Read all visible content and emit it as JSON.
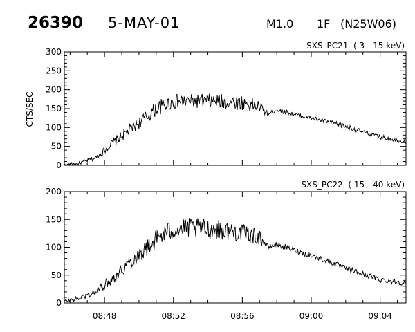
{
  "header": {
    "event_number": "26390",
    "date": "5-MAY-01",
    "goes_class": "M1.0",
    "optical_class": "1F",
    "location": "(N25W06)"
  },
  "chart_data": [
    {
      "type": "line",
      "title": "SXS_PC21  ( 3 - 15 keV)",
      "ylabel": "CTS/SEC",
      "xlabel": "",
      "xlim": [
        "08:45:40",
        "09:05:30"
      ],
      "ylim": [
        0,
        300
      ],
      "yticks": [
        0,
        50,
        100,
        150,
        200,
        250,
        300
      ],
      "xticks": [
        "08:48",
        "08:52",
        "08:56",
        "09:00",
        "09:04"
      ],
      "xtick_labels_shown": false,
      "grid": false,
      "series": [
        {
          "x": [
            "08:45:40",
            "08:46:30",
            "08:47:30",
            "08:48:30",
            "08:49:30",
            "08:50:30",
            "08:51:00",
            "08:51:30",
            "08:52:00",
            "08:53:00",
            "08:54:00",
            "08:55:00",
            "08:56:00",
            "08:57:00",
            "08:57:30",
            "08:58:00",
            "08:59:00",
            "09:00:00",
            "09:01:00",
            "09:02:00",
            "09:03:00",
            "09:04:00",
            "09:05:30"
          ],
          "y": [
            2,
            5,
            20,
            60,
            95,
            130,
            150,
            160,
            168,
            170,
            170,
            168,
            166,
            155,
            135,
            147,
            135,
            125,
            115,
            103,
            88,
            75,
            63
          ],
          "noise": [
            3,
            4,
            6,
            12,
            15,
            18,
            20,
            20,
            20,
            18,
            20,
            20,
            20,
            16,
            5,
            6,
            6,
            6,
            6,
            6,
            6,
            6,
            6
          ]
        }
      ]
    },
    {
      "type": "line",
      "title": "SXS_PC22  ( 15 - 40 keV)",
      "ylabel": "",
      "xlabel": "",
      "xlim": [
        "08:45:40",
        "09:05:30"
      ],
      "ylim": [
        0,
        200
      ],
      "yticks": [
        0,
        50,
        100,
        150,
        200
      ],
      "xticks": [
        "08:48",
        "08:52",
        "08:56",
        "09:00",
        "09:04"
      ],
      "xtick_labels_shown": true,
      "grid": false,
      "series": [
        {
          "x": [
            "08:45:40",
            "08:46:30",
            "08:47:30",
            "08:48:30",
            "08:49:30",
            "08:50:30",
            "08:51:00",
            "08:51:30",
            "08:52:00",
            "08:53:00",
            "08:54:00",
            "08:55:00",
            "08:56:00",
            "08:57:00",
            "08:57:30",
            "08:58:00",
            "08:59:00",
            "09:00:00",
            "09:01:00",
            "09:02:00",
            "09:03:00",
            "09:04:00",
            "09:05:30"
          ],
          "y": [
            3,
            8,
            20,
            45,
            75,
            100,
            115,
            125,
            132,
            135,
            133,
            130,
            126,
            118,
            100,
            105,
            95,
            85,
            75,
            62,
            52,
            42,
            36
          ],
          "noise": [
            3,
            4,
            7,
            10,
            14,
            16,
            18,
            18,
            18,
            18,
            18,
            18,
            16,
            14,
            4,
            5,
            5,
            5,
            5,
            5,
            5,
            5,
            5
          ]
        }
      ]
    }
  ]
}
